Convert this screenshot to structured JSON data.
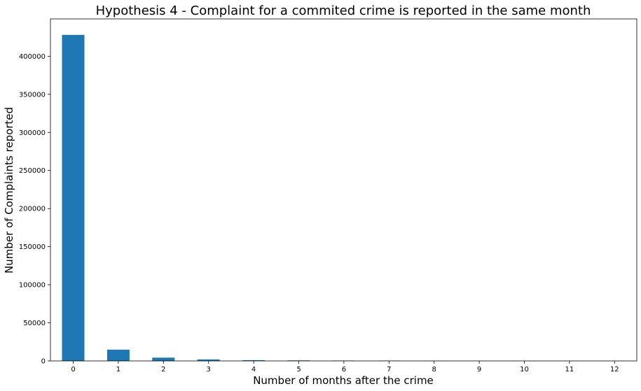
{
  "chart_data": {
    "type": "bar",
    "title": "Hypothesis 4 - Complaint for a commited crime is reported in the same month",
    "xlabel": "Number of months after the crime",
    "ylabel": "Number of Complaints reported",
    "categories": [
      "0",
      "1",
      "2",
      "3",
      "4",
      "5",
      "6",
      "7",
      "8",
      "9",
      "10",
      "11",
      "12"
    ],
    "values": [
      428000,
      14800,
      4300,
      2000,
      1000,
      700,
      500,
      400,
      200,
      150,
      100,
      80,
      60
    ],
    "ylim": [
      0,
      449000
    ],
    "yticks": [
      0,
      50000,
      100000,
      150000,
      200000,
      250000,
      300000,
      350000,
      400000
    ],
    "ytick_labels": [
      "0",
      "50000",
      "100000",
      "150000",
      "200000",
      "250000",
      "300000",
      "350000",
      "400000"
    ],
    "grid": false,
    "legend": "none",
    "bar_color": "#1f77b4"
  }
}
